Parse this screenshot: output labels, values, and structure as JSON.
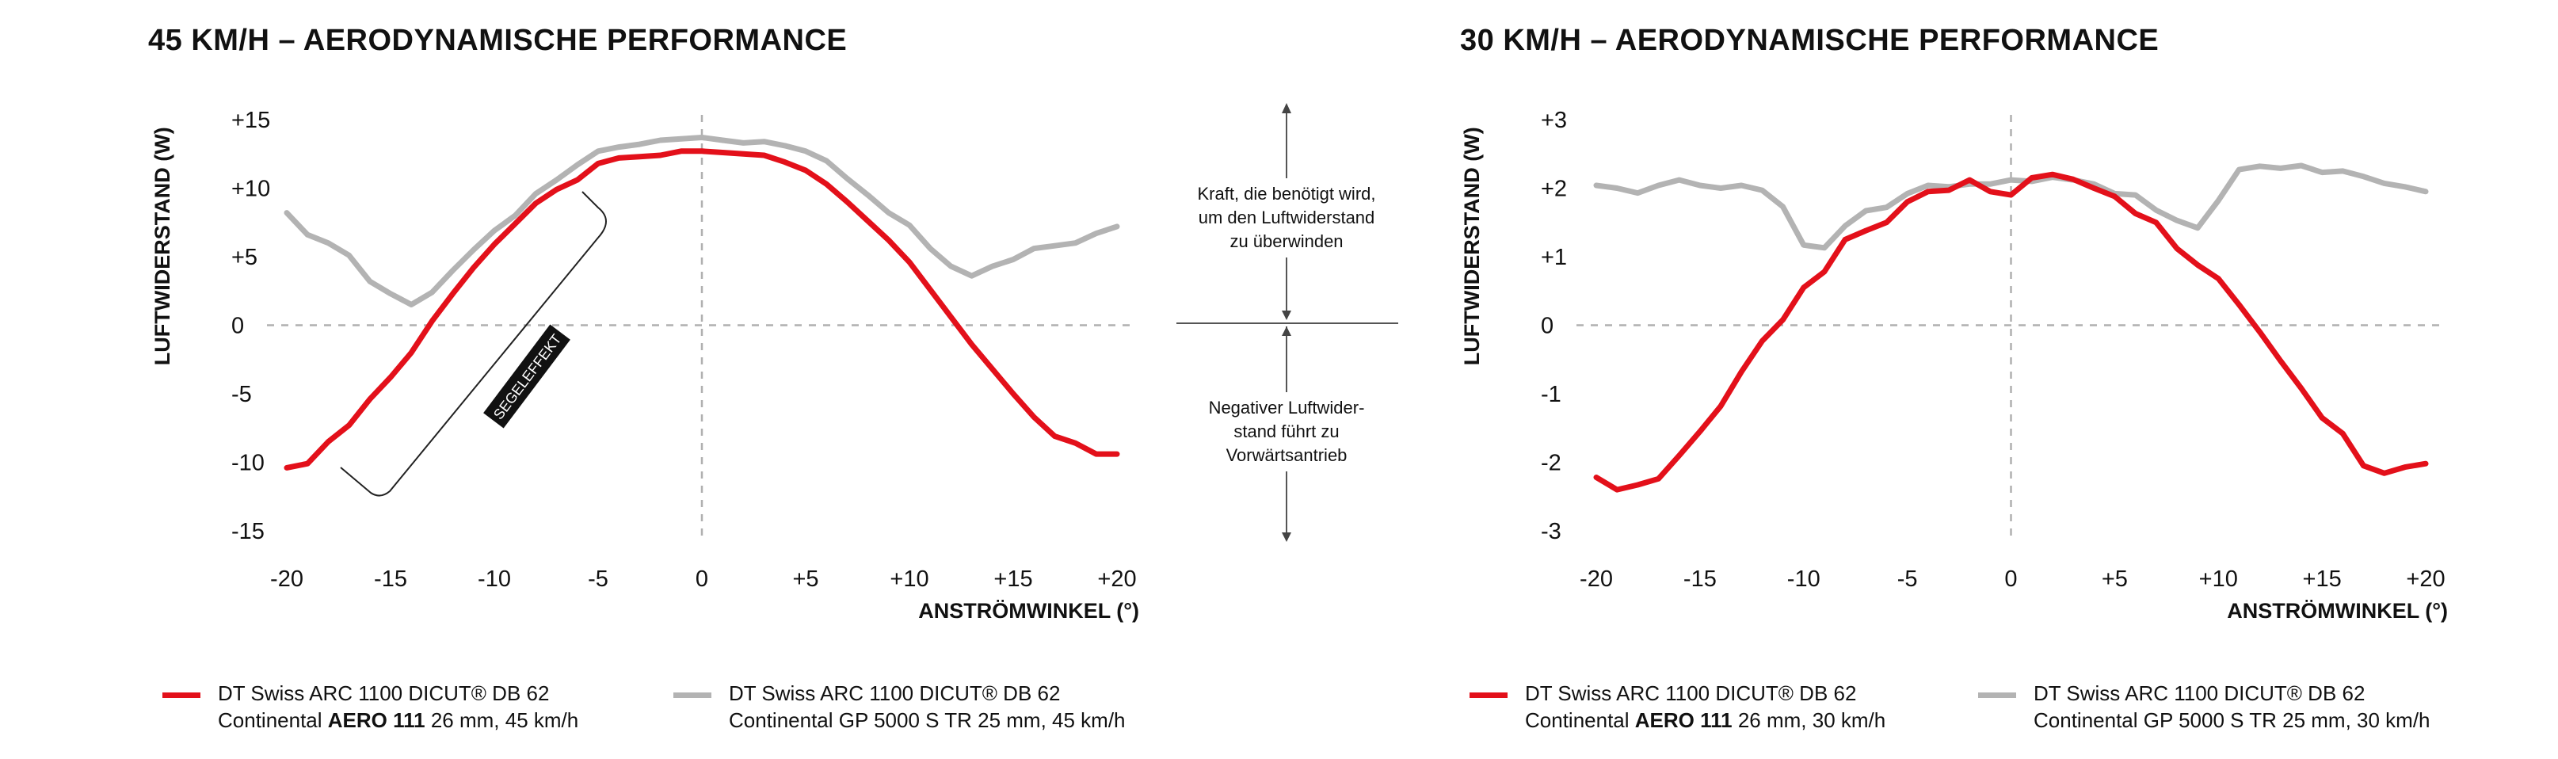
{
  "colors": {
    "red": "#e3101a",
    "gray": "#b3b3b3",
    "grid": "#b0b0b0",
    "text": "#111111"
  },
  "middle_annotation": {
    "upper_text": [
      "Kraft, die benötigt wird,",
      "um den Luftwiderstand",
      "zu überwinden"
    ],
    "lower_text": [
      "Negativer Luftwider-",
      "stand führt zu",
      "Vorwärtsantrieb"
    ]
  },
  "chart_data": [
    {
      "type": "line",
      "title": "45 KM/H – AERODYNAMISCHE PERFORMANCE",
      "xlabel": "ANSTRÖMWINKEL (°)",
      "ylabel": "LUFTWIDERSTAND (W)",
      "xlim": [
        -20,
        20
      ],
      "ylim": [
        -15,
        15
      ],
      "x_ticks": [
        -20,
        -15,
        -10,
        -5,
        0,
        5,
        10,
        15,
        20
      ],
      "x_tick_labels": [
        "-20",
        "-15",
        "-10",
        "-5",
        "0",
        "+5",
        "+10",
        "+15",
        "+20"
      ],
      "y_ticks": [
        15,
        10,
        5,
        0,
        -5,
        -10,
        -15
      ],
      "y_tick_labels": [
        "+15",
        "+10",
        "+5",
        "0",
        "-5",
        "-10",
        "-15"
      ],
      "annotation": "SEGELEFFEKT",
      "series": [
        {
          "name_line1": "DT Swiss ARC 1100 DICUT® DB 62",
          "name_line2_pre": "Continental ",
          "name_line2_bold": "AERO 111",
          "name_line2_post": " 26 mm, 45 km/h",
          "color": "#e3101a",
          "x": [
            -20,
            -19,
            -18,
            -17,
            -16,
            -15,
            -14,
            -13,
            -12,
            -11,
            -10,
            -9,
            -8,
            -7,
            -6,
            -5,
            -4,
            -3,
            -2,
            -1,
            0,
            1,
            2,
            3,
            4,
            5,
            6,
            7,
            8,
            9,
            10,
            11,
            12,
            13,
            14,
            15,
            16,
            17,
            18,
            19,
            20
          ],
          "y": [
            -10.4,
            -10.1,
            -8.5,
            -7.3,
            -5.4,
            -3.8,
            -2.0,
            0.3,
            2.3,
            4.2,
            5.9,
            7.4,
            8.9,
            9.9,
            10.6,
            11.8,
            12.2,
            12.3,
            12.4,
            12.7,
            12.7,
            12.6,
            12.5,
            12.4,
            11.9,
            11.3,
            10.3,
            9.0,
            7.6,
            6.2,
            4.6,
            2.6,
            0.6,
            -1.4,
            -3.2,
            -5.0,
            -6.7,
            -8.1,
            -8.6,
            -9.4,
            -9.4
          ]
        },
        {
          "name_line1": "DT Swiss ARC 1100 DICUT® DB 62",
          "name_line2": "Continental GP 5000 S TR 25 mm, 45 km/h",
          "color": "#b3b3b3",
          "x": [
            -20,
            -19,
            -18,
            -17,
            -16,
            -15,
            -14,
            -13,
            -12,
            -11,
            -10,
            -9,
            -8,
            -7,
            -6,
            -5,
            -4,
            -3,
            -2,
            -1,
            0,
            1,
            2,
            3,
            4,
            5,
            6,
            7,
            8,
            9,
            10,
            11,
            12,
            13,
            14,
            15,
            16,
            17,
            18,
            19,
            20
          ],
          "y": [
            8.2,
            6.6,
            6.0,
            5.1,
            3.2,
            2.3,
            1.5,
            2.4,
            4.0,
            5.5,
            6.9,
            8.0,
            9.6,
            10.6,
            11.7,
            12.7,
            13.0,
            13.2,
            13.5,
            13.6,
            13.7,
            13.5,
            13.3,
            13.4,
            13.1,
            12.7,
            12.0,
            10.7,
            9.5,
            8.2,
            7.3,
            5.6,
            4.3,
            3.6,
            4.3,
            4.8,
            5.6,
            5.8,
            6.0,
            6.7,
            7.2
          ]
        }
      ]
    },
    {
      "type": "line",
      "title": "30 KM/H – AERODYNAMISCHE PERFORMANCE",
      "xlabel": "ANSTRÖMWINKEL (°)",
      "ylabel": "LUFTWIDERSTAND (W)",
      "xlim": [
        -20,
        20
      ],
      "ylim": [
        -3,
        3
      ],
      "x_ticks": [
        -20,
        -15,
        -10,
        -5,
        0,
        5,
        10,
        15,
        20
      ],
      "x_tick_labels": [
        "-20",
        "-15",
        "-10",
        "-5",
        "0",
        "+5",
        "+10",
        "+15",
        "+20"
      ],
      "y_ticks": [
        3,
        2,
        1,
        0,
        -1,
        -2,
        -3
      ],
      "y_tick_labels": [
        "+3",
        "+2",
        "+1",
        "0",
        "-1",
        "-2",
        "-3"
      ],
      "series": [
        {
          "name_line1": "DT Swiss ARC 1100 DICUT® DB 62",
          "name_line2_pre": "Continental ",
          "name_line2_bold": "AERO 111",
          "name_line2_post": " 26 mm, 30 km/h",
          "color": "#e3101a",
          "x": [
            -20,
            -19,
            -18,
            -17,
            -16,
            -15,
            -14,
            -13,
            -12,
            -11,
            -10,
            -9,
            -8,
            -7,
            -6,
            -5,
            -4,
            -3,
            -2,
            -1,
            0,
            1,
            2,
            3,
            4,
            5,
            6,
            7,
            8,
            9,
            10,
            11,
            12,
            13,
            14,
            15,
            16,
            17,
            18,
            19,
            20
          ],
          "y": [
            -2.22,
            -2.4,
            -2.33,
            -2.24,
            -1.9,
            -1.55,
            -1.18,
            -0.68,
            -0.23,
            0.08,
            0.55,
            0.78,
            1.25,
            1.38,
            1.5,
            1.8,
            1.95,
            1.97,
            2.12,
            1.95,
            1.9,
            2.15,
            2.2,
            2.13,
            2.0,
            1.88,
            1.63,
            1.5,
            1.12,
            0.88,
            0.68,
            0.3,
            -0.1,
            -0.52,
            -0.92,
            -1.35,
            -1.58,
            -2.05,
            -2.16,
            -2.07,
            -2.02
          ]
        },
        {
          "name_line1": "DT Swiss ARC 1100 DICUT® DB 62",
          "name_line2": "Continental GP 5000 S TR 25 mm, 30 km/h",
          "color": "#b3b3b3",
          "x": [
            -20,
            -19,
            -18,
            -17,
            -16,
            -15,
            -14,
            -13,
            -12,
            -11,
            -10,
            -9,
            -8,
            -7,
            -6,
            -5,
            -4,
            -3,
            -2,
            -1,
            0,
            1,
            2,
            3,
            4,
            5,
            6,
            7,
            8,
            9,
            10,
            11,
            12,
            13,
            14,
            15,
            16,
            17,
            18,
            19,
            20
          ],
          "y": [
            2.04,
            2.0,
            1.93,
            2.04,
            2.12,
            2.04,
            2.0,
            2.04,
            1.97,
            1.73,
            1.17,
            1.13,
            1.45,
            1.67,
            1.72,
            1.92,
            2.04,
            2.02,
            2.06,
            2.06,
            2.12,
            2.1,
            2.16,
            2.12,
            2.06,
            1.92,
            1.9,
            1.68,
            1.53,
            1.42,
            1.82,
            2.27,
            2.32,
            2.29,
            2.33,
            2.23,
            2.25,
            2.17,
            2.07,
            2.02,
            1.95
          ]
        }
      ]
    }
  ]
}
